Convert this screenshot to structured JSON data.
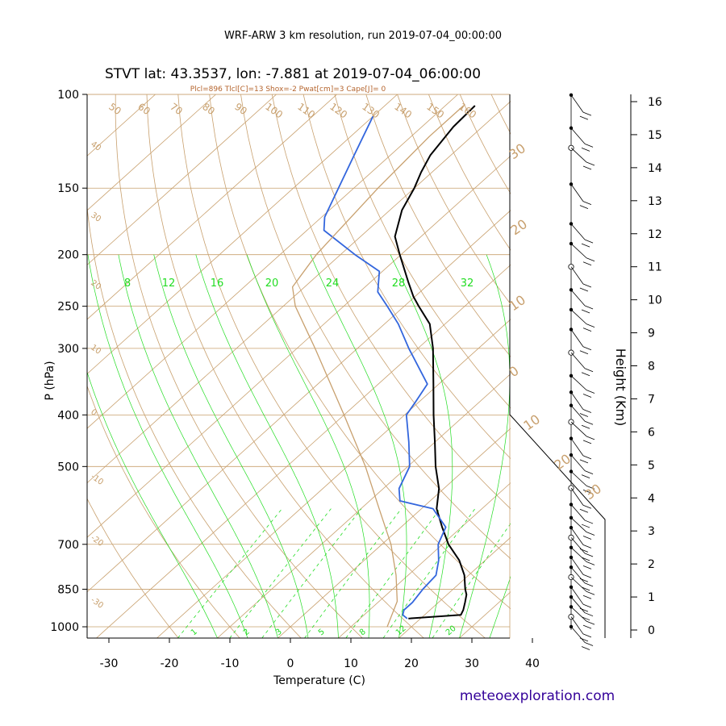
{
  "header": {
    "suptitle": "WRF-ARW 3 km resolution, run 2019-07-04_00:00:00",
    "title": "STVT lat: 43.3537, lon: -7.881 at 2019-07-04_06:00:00",
    "indices": "Plcl=896 Tlcl[C]=13 Shox=-2 Pwat[cm]=3 Cape[J]= 0",
    "credit": "meteoexploration.com"
  },
  "colors": {
    "temperature": "#000000",
    "dewpoint": "#3366dd",
    "parcel": "#c8a06e",
    "grid": "#c8a06e",
    "mixing_ratio": "#22dd22",
    "credit": "#330099"
  },
  "chart_data": {
    "type": "line",
    "title": "STVT lat: 43.3537, lon: -7.881 at 2019-07-04_06:00:00",
    "xlabel": "Temperature (C)",
    "ylabel": "P (hPa)",
    "y2label": "Height (Km)",
    "xlim": [
      -35,
      47
    ],
    "ylim": [
      1050,
      100
    ],
    "yscale": "log",
    "x_ticks": [
      -30,
      -20,
      -10,
      0,
      10,
      20,
      30,
      40
    ],
    "y_ticks": [
      100,
      150,
      200,
      250,
      300,
      400,
      500,
      700,
      850,
      1000
    ],
    "height_ticks": [
      0,
      1,
      2,
      3,
      4,
      5,
      6,
      7,
      8,
      9,
      10,
      11,
      12,
      13,
      14,
      15,
      16
    ],
    "series": [
      {
        "key": "temperature",
        "pressure": [
          965,
          950,
          930,
          900,
          870,
          850,
          800,
          750,
          700,
          650,
          600,
          550,
          500,
          450,
          400,
          350,
          300,
          270,
          250,
          240,
          225,
          200,
          185,
          165,
          150,
          140,
          130,
          115,
          105
        ],
        "values": [
          18,
          26,
          25.5,
          24.4,
          23.2,
          22,
          19.3,
          15.7,
          11,
          6.8,
          2.5,
          -0.8,
          -5.4,
          -10,
          -15.2,
          -20.9,
          -27.5,
          -32.5,
          -37.6,
          -40.2,
          -43.8,
          -50.2,
          -54.3,
          -58,
          -60,
          -61.8,
          -63.4,
          -64.8,
          -65.1
        ]
      },
      {
        "key": "dewpoint",
        "pressure": [
          965,
          950,
          930,
          900,
          850,
          800,
          750,
          700,
          650,
          600,
          580,
          550,
          500,
          450,
          400,
          380,
          350,
          300,
          270,
          250,
          235,
          215,
          200,
          180,
          170,
          130,
          110
        ],
        "values": [
          17.8,
          16.4,
          15.7,
          15.7,
          15,
          14.6,
          12.3,
          9.3,
          7.4,
          1.9,
          -5,
          -7.4,
          -9.7,
          -14.3,
          -19.7,
          -20.5,
          -21.9,
          -31.5,
          -37.7,
          -42.8,
          -47,
          -50.5,
          -57.6,
          -67.2,
          -69.5,
          -76,
          -80
        ]
      },
      {
        "key": "parcel",
        "pressure": [
          1000,
          896,
          800,
          700,
          600,
          500,
          400,
          300,
          250,
          230,
          200,
          150,
          120,
          105
        ],
        "values": [
          16,
          13,
          8,
          1.5,
          -7,
          -17,
          -30,
          -47,
          -58,
          -62,
          -64,
          -66,
          -67,
          -67
        ]
      }
    ],
    "isotherm_labels": [
      -10,
      0,
      10,
      20,
      30
    ],
    "mixing_ratio_labels": [
      "1",
      "2",
      "3",
      "5",
      "8",
      "12",
      "20"
    ],
    "theta_labels": [
      "50",
      "60",
      "70",
      "80",
      "90",
      "100",
      "110",
      "120",
      "130",
      "140",
      "150",
      "160"
    ],
    "moist_adiabat_left_labels": [
      "40",
      "30",
      "20",
      "10",
      "0",
      "-10",
      "-20",
      "-30"
    ],
    "moist_adiabat_upper_labels": [
      "8",
      "12",
      "16",
      "20",
      "24",
      "28",
      "32"
    ],
    "wind_barb_heights_km": [
      16.2,
      15.2,
      14.6,
      13.5,
      12.3,
      11.7,
      11.0,
      10.3,
      9.7,
      9.1,
      8.4,
      7.7,
      7.2,
      6.8,
      6.3,
      5.8,
      5.3,
      4.8,
      4.3,
      3.8,
      3.4,
      3.1,
      2.8,
      2.5,
      2.2,
      1.9,
      1.6,
      1.3,
      1.0,
      0.7,
      0.4,
      0.1
    ]
  }
}
